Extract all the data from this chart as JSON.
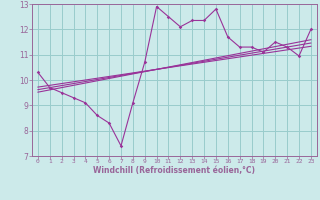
{
  "xlabel": "Windchill (Refroidissement éolien,°C)",
  "bg_color": "#cceaea",
  "line_color": "#993399",
  "grid_color": "#99cccc",
  "axis_color": "#996699",
  "x_data": [
    0,
    1,
    2,
    3,
    4,
    5,
    6,
    7,
    8,
    9,
    10,
    11,
    12,
    13,
    14,
    15,
    16,
    17,
    18,
    19,
    20,
    21,
    22,
    23
  ],
  "y_main": [
    10.3,
    9.7,
    9.5,
    9.3,
    9.1,
    8.6,
    8.3,
    7.4,
    9.1,
    10.7,
    12.9,
    12.5,
    12.1,
    12.35,
    12.35,
    12.8,
    11.7,
    11.3,
    11.3,
    11.1,
    11.5,
    11.3,
    10.95,
    12.0
  ],
  "y_reg1": [
    9.72,
    9.79,
    9.86,
    9.93,
    10.0,
    10.07,
    10.14,
    10.21,
    10.28,
    10.35,
    10.42,
    10.49,
    10.56,
    10.63,
    10.7,
    10.77,
    10.84,
    10.91,
    10.98,
    11.05,
    11.12,
    11.19,
    11.26,
    11.33
  ],
  "y_reg2": [
    9.62,
    9.7,
    9.78,
    9.86,
    9.94,
    10.02,
    10.1,
    10.18,
    10.26,
    10.34,
    10.42,
    10.5,
    10.58,
    10.66,
    10.74,
    10.82,
    10.9,
    10.98,
    11.06,
    11.14,
    11.22,
    11.3,
    11.38,
    11.46
  ],
  "y_reg3": [
    9.52,
    9.61,
    9.7,
    9.79,
    9.88,
    9.97,
    10.06,
    10.15,
    10.24,
    10.33,
    10.42,
    10.51,
    10.6,
    10.69,
    10.78,
    10.87,
    10.96,
    11.05,
    11.14,
    11.23,
    11.32,
    11.41,
    11.5,
    11.59
  ],
  "xlim": [
    -0.5,
    23.5
  ],
  "ylim": [
    7,
    13
  ],
  "xticks": [
    0,
    1,
    2,
    3,
    4,
    5,
    6,
    7,
    8,
    9,
    10,
    11,
    12,
    13,
    14,
    15,
    16,
    17,
    18,
    19,
    20,
    21,
    22,
    23
  ],
  "yticks": [
    7,
    8,
    9,
    10,
    11,
    12,
    13
  ]
}
